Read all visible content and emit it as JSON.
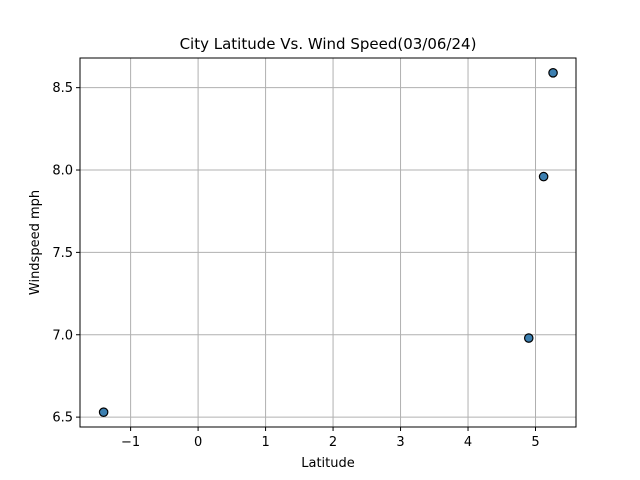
{
  "chart_data": {
    "type": "scatter",
    "title": "City Latitude Vs. Wind Speed(03/06/24)",
    "xlabel": "Latitude",
    "ylabel": "Windspeed mph",
    "xlim": [
      -1.75,
      5.6
    ],
    "ylim": [
      6.44,
      8.68
    ],
    "x_ticks": [
      -1,
      0,
      1,
      2,
      3,
      4,
      5
    ],
    "x_tick_labels": [
      "−1",
      "0",
      "1",
      "2",
      "3",
      "4",
      "5"
    ],
    "y_ticks": [
      6.5,
      7.0,
      7.5,
      8.0,
      8.5
    ],
    "y_tick_labels": [
      "6.5",
      "7.0",
      "7.5",
      "8.0",
      "8.5"
    ],
    "grid": true,
    "points": [
      {
        "x": -1.4,
        "y": 6.53
      },
      {
        "x": 4.9,
        "y": 6.98
      },
      {
        "x": 5.12,
        "y": 7.96
      },
      {
        "x": 5.26,
        "y": 8.59
      }
    ],
    "colors": {
      "marker_fill": "#3c7fb0",
      "marker_edge": "#000000",
      "grid": "#b0b0b0",
      "axes": "#000000"
    }
  }
}
